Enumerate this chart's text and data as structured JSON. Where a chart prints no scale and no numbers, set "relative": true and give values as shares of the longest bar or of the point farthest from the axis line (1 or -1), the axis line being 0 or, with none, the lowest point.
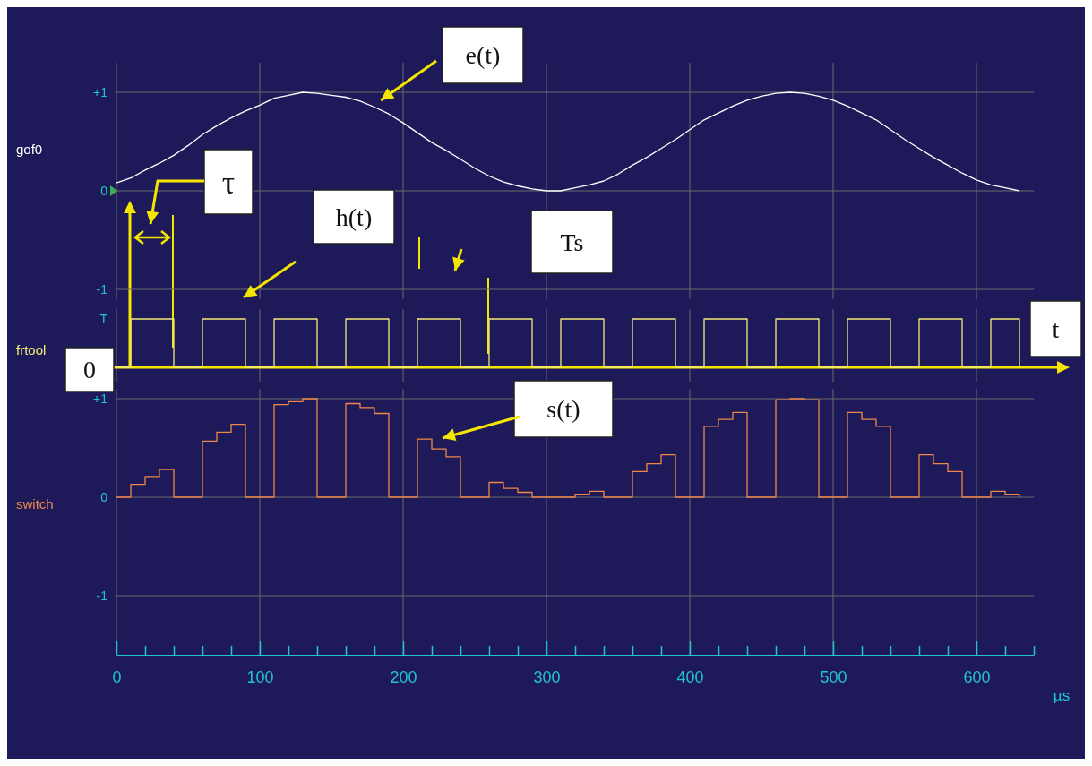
{
  "chart_data": [
    {
      "type": "line",
      "ylabel": "gof0",
      "xlim": [
        0,
        640
      ],
      "ylim": [
        -1.1,
        1.3
      ],
      "yticks": [
        {
          "value": 1,
          "label": "+1"
        },
        {
          "value": 0,
          "label": "0"
        },
        {
          "value": -1,
          "label": "-1"
        }
      ],
      "xticks": [
        0,
        100,
        200,
        300,
        400,
        500,
        600
      ],
      "grid": true,
      "tick_labels": "y",
      "series": [
        {
          "color": "#ffffff",
          "x": [
            0,
            10,
            20,
            30,
            40,
            50,
            60,
            70,
            80,
            90,
            100,
            110,
            120,
            130,
            140,
            150,
            160,
            170,
            180,
            190,
            200,
            210,
            220,
            230,
            240,
            250,
            260,
            270,
            280,
            290,
            300,
            310,
            320,
            330,
            340,
            350,
            360,
            370,
            380,
            390,
            400,
            410,
            420,
            430,
            440,
            450,
            460,
            470,
            480,
            490,
            500,
            510,
            520,
            530,
            540,
            550,
            560,
            570,
            580,
            590,
            600,
            610,
            620,
            630
          ],
          "values": [
            0.08,
            0.13,
            0.21,
            0.28,
            0.36,
            0.46,
            0.57,
            0.66,
            0.74,
            0.81,
            0.87,
            0.94,
            0.97,
            1.0,
            0.99,
            0.97,
            0.95,
            0.91,
            0.85,
            0.78,
            0.69,
            0.59,
            0.49,
            0.41,
            0.32,
            0.23,
            0.15,
            0.09,
            0.05,
            0.02,
            0.0,
            0.0,
            0.03,
            0.06,
            0.1,
            0.17,
            0.26,
            0.34,
            0.43,
            0.52,
            0.62,
            0.72,
            0.79,
            0.86,
            0.92,
            0.96,
            0.99,
            1.0,
            0.99,
            0.96,
            0.92,
            0.86,
            0.79,
            0.72,
            0.62,
            0.52,
            0.43,
            0.34,
            0.26,
            0.18,
            0.11,
            0.06,
            0.03,
            0.0
          ]
        }
      ],
      "annotations": [
        "e(t)",
        "τ"
      ]
    },
    {
      "type": "step",
      "ylabel": "frtool",
      "xlim": [
        0,
        640
      ],
      "relative": true,
      "xticks": [
        0,
        100,
        200,
        300,
        400,
        500,
        600
      ],
      "grid": "x",
      "tick_labels": "y",
      "series": [
        {
          "color": "#f2ea7a",
          "x": [
            0,
            10,
            40,
            60,
            90,
            110,
            140,
            160,
            190,
            210,
            240,
            260,
            290,
            310,
            340,
            360,
            390,
            410,
            440,
            460,
            490,
            510,
            540,
            560,
            590,
            610,
            630
          ],
          "values": [
            0,
            1,
            0,
            1,
            0,
            1,
            0,
            1,
            0,
            1,
            0,
            1,
            0,
            1,
            0,
            1,
            0,
            1,
            0,
            1,
            0,
            1,
            0,
            1,
            0,
            1,
            0
          ]
        }
      ],
      "annotations": [
        "T",
        "h(t)",
        "Ts",
        "t",
        "0"
      ]
    },
    {
      "type": "step",
      "ylabel": "switch",
      "xlabel": "µs",
      "xlim": [
        0,
        640
      ],
      "ylim": [
        -1.6,
        1.1
      ],
      "yticks": [
        {
          "value": 1,
          "label": "+1"
        },
        {
          "value": 0,
          "label": "0"
        },
        {
          "value": -1,
          "label": "-1"
        }
      ],
      "xticks": [
        0,
        {
          "value": 20,
          "label": null
        },
        {
          "value": 40,
          "label": null
        },
        {
          "value": 60,
          "label": null
        },
        {
          "value": 80,
          "label": null
        },
        100,
        {
          "value": 120,
          "label": null
        },
        {
          "value": 140,
          "label": null
        },
        {
          "value": 160,
          "label": null
        },
        {
          "value": 180,
          "label": null
        },
        200,
        {
          "value": 220,
          "label": null
        },
        {
          "value": 240,
          "label": null
        },
        {
          "value": 260,
          "label": null
        },
        {
          "value": 280,
          "label": null
        },
        300,
        {
          "value": 320,
          "label": null
        },
        {
          "value": 340,
          "label": null
        },
        {
          "value": 360,
          "label": null
        },
        {
          "value": 380,
          "label": null
        },
        400,
        {
          "value": 420,
          "label": null
        },
        {
          "value": 440,
          "label": null
        },
        {
          "value": 460,
          "label": null
        },
        {
          "value": 480,
          "label": null
        },
        500,
        {
          "value": 520,
          "label": null
        },
        {
          "value": 540,
          "label": null
        },
        {
          "value": 560,
          "label": null
        },
        {
          "value": 580,
          "label": null
        },
        600,
        {
          "value": 620,
          "label": null
        },
        {
          "value": 640,
          "label": null
        }
      ],
      "grid": true,
      "series": [
        {
          "color": "#f08848",
          "x": [
            0,
            10,
            20,
            30,
            40,
            60,
            70,
            80,
            90,
            110,
            120,
            130,
            140,
            160,
            170,
            180,
            190,
            210,
            220,
            230,
            240,
            260,
            270,
            280,
            290,
            310,
            320,
            330,
            340,
            360,
            370,
            380,
            390,
            410,
            420,
            430,
            440,
            460,
            470,
            480,
            490,
            510,
            520,
            530,
            540,
            560,
            570,
            580,
            590,
            610,
            620,
            630
          ],
          "values": [
            0,
            0.13,
            0.21,
            0.28,
            0,
            0.57,
            0.66,
            0.74,
            0,
            0.94,
            0.97,
            1.0,
            0,
            0.95,
            0.91,
            0.85,
            0,
            0.59,
            0.49,
            0.41,
            0,
            0.15,
            0.09,
            0.05,
            0,
            0.0,
            0.03,
            0.06,
            0,
            0.26,
            0.34,
            0.43,
            0,
            0.72,
            0.79,
            0.86,
            0,
            0.99,
            1.0,
            0.99,
            0,
            0.86,
            0.79,
            0.72,
            0,
            0.43,
            0.34,
            0.26,
            0,
            0.06,
            0.03,
            0
          ]
        }
      ],
      "annotations": [
        "s(t)"
      ]
    }
  ]
}
